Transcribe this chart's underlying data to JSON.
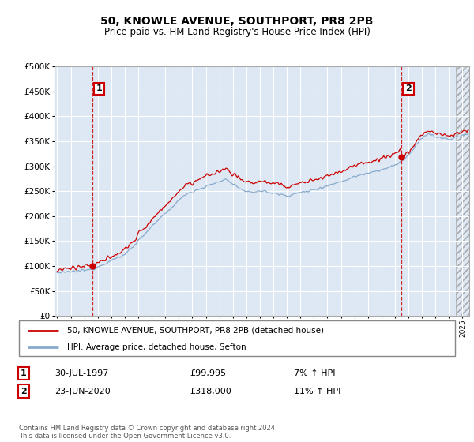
{
  "title": "50, KNOWLE AVENUE, SOUTHPORT, PR8 2PB",
  "subtitle": "Price paid vs. HM Land Registry's House Price Index (HPI)",
  "legend_line1": "50, KNOWLE AVENUE, SOUTHPORT, PR8 2PB (detached house)",
  "legend_line2": "HPI: Average price, detached house, Sefton",
  "annotation1_label": "1",
  "annotation1_date": "30-JUL-1997",
  "annotation1_price": "£99,995",
  "annotation1_hpi": "7% ↑ HPI",
  "annotation2_label": "2",
  "annotation2_date": "23-JUN-2020",
  "annotation2_price": "£318,000",
  "annotation2_hpi": "11% ↑ HPI",
  "footer": "Contains HM Land Registry data © Crown copyright and database right 2024.\nThis data is licensed under the Open Government Licence v3.0.",
  "point1_year": 1997.58,
  "point1_value": 99995,
  "point2_year": 2020.47,
  "point2_value": 318000,
  "red_color": "#cc0000",
  "blue_color": "#88aacc",
  "annotation_box_color": "#cc0000",
  "background_color": "#dde8f4",
  "ylim": [
    0,
    500000
  ],
  "xlim_start": 1994.8,
  "xlim_end": 2025.5,
  "hatch_start": 2024.5
}
